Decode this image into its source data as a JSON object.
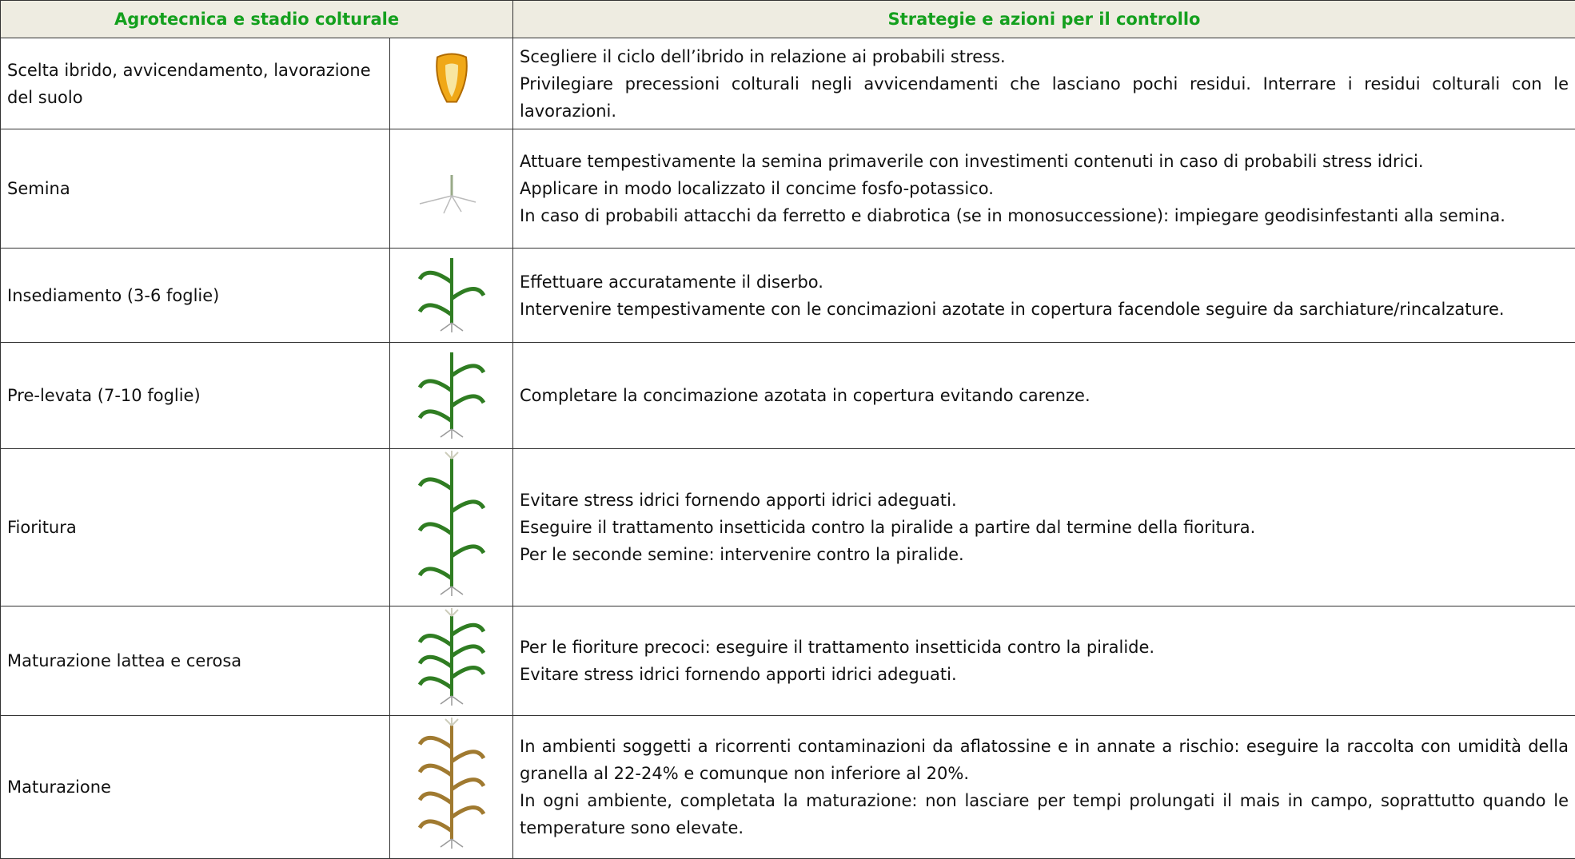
{
  "table": {
    "header": [
      "Agrotecnica e stadio colturale",
      "Strategie e azioni per il controllo"
    ],
    "rows": [
      {
        "stage": "Scelta ibrido, avvicendamento, lavorazione del suolo",
        "actions": [
          "Scegliere il ciclo dell’ibrido in relazione ai probabili stress.",
          "Privilegiare precessioni colturali negli avvicendamenti che lasciano pochi residui. Interrare i residui colturali con le lavorazioni."
        ]
      },
      {
        "stage": "Semina",
        "actions": [
          "Attuare tempestivamente la semina primaverile con investimenti contenuti in caso di probabili stress idrici.",
          "Applicare in modo localizzato il concime fosfo-potassico.",
          "In caso di probabili attacchi da ferretto e diabrotica (se in monosuccessione): impiegare geodisinfestanti alla semina."
        ]
      },
      {
        "stage": "Insediamento (3-6 foglie)",
        "actions": [
          "Effettuare accuratamente il diserbo.",
          "Intervenire tempestivamente con le concimazioni azotate in copertura facendole seguire da sarchiature/rincalzature."
        ]
      },
      {
        "stage": "Pre-levata (7-10 foglie)",
        "actions": [
          "Completare la concimazione azotata in copertura evitando carenze."
        ]
      },
      {
        "stage": "Fioritura",
        "actions": [
          "Evitare stress idrici fornendo apporti idrici adeguati.",
          "Eseguire il trattamento insetticida contro la piralide a partire dal termine della fioritura.",
          "Per le seconde semine: intervenire contro la piralide."
        ]
      },
      {
        "stage": "Maturazione lattea e cerosa",
        "actions": [
          "Per le fioriture precoci: eseguire il trattamento insetticida contro la piralide.",
          "Evitare stress idrici fornendo apporti idrici adeguati."
        ]
      },
      {
        "stage": "Maturazione",
        "actions": [
          "In ambienti soggetti a ricorrenti contaminazioni da aflatossine e in annate a rischio: eseguire la raccolta con umidità della granella al 22-24% e comunque non inferiore al 20%.",
          "In ogni ambiente, completata la maturazione: non lasciare per tempi prolungati il mais in campo, soprattutto quando le temperature sono elevate."
        ]
      }
    ]
  }
}
